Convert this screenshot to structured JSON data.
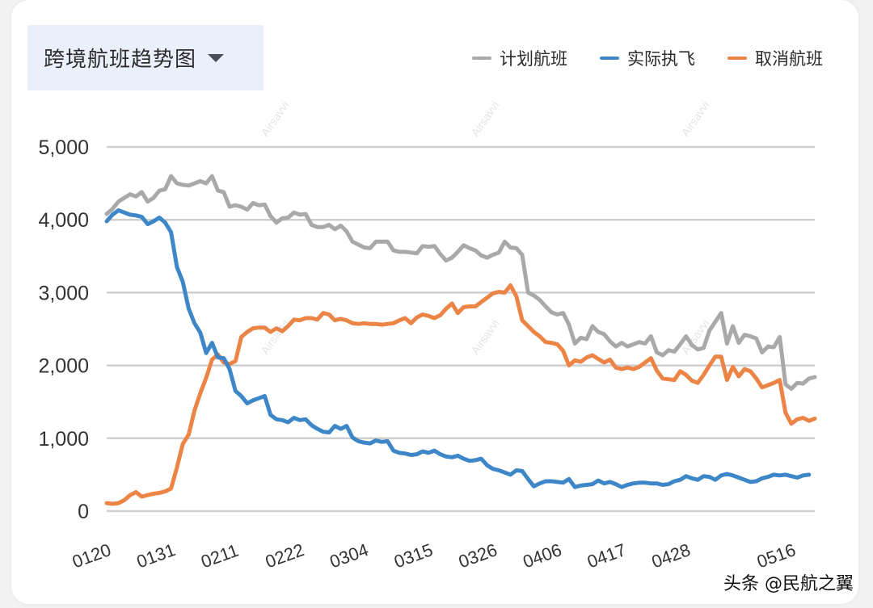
{
  "selector": {
    "label": "跨境航班趋势图",
    "caret_icon": "caret-down-icon"
  },
  "legend": [
    {
      "label": "计划航班",
      "color": "#a9a9a9"
    },
    {
      "label": "实际执飞",
      "color": "#3d87c9"
    },
    {
      "label": "取消航班",
      "color": "#ec8446"
    }
  ],
  "credit": "头条 @民航之翼",
  "chart_data": {
    "type": "line",
    "title": "跨境航班趋势图",
    "xlabel": "",
    "ylabel": "",
    "ylim": [
      0,
      5000
    ],
    "yticks": [
      "0",
      "1,000",
      "2,000",
      "3,000",
      "4,000",
      "5,000"
    ],
    "xtick_labels": [
      "0120",
      "0131",
      "0211",
      "0222",
      "0304",
      "0315",
      "0326",
      "0406",
      "0417",
      "0428",
      "0516"
    ],
    "x_start": "0120",
    "x_end": "0516",
    "grid": true,
    "legend_position": "top-right",
    "series": [
      {
        "name": "计划航班",
        "color": "#a9a9a9",
        "values": [
          4080,
          4150,
          4250,
          4300,
          4350,
          4320,
          4380,
          4250,
          4300,
          4400,
          4420,
          4600,
          4500,
          4480,
          4470,
          4500,
          4530,
          4500,
          4600,
          4400,
          4380,
          4180,
          4200,
          4180,
          4140,
          4230,
          4200,
          4210,
          4050,
          3960,
          4020,
          4030,
          4100,
          4070,
          4080,
          3930,
          3900,
          3900,
          3930,
          3870,
          3920,
          3840,
          3700,
          3660,
          3620,
          3610,
          3700,
          3700,
          3700,
          3580,
          3560,
          3560,
          3550,
          3540,
          3640,
          3630,
          3640,
          3530,
          3440,
          3480,
          3560,
          3650,
          3610,
          3580,
          3510,
          3480,
          3520,
          3550,
          3700,
          3620,
          3610,
          3520,
          3000,
          2960,
          2900,
          2810,
          2730,
          2700,
          2720,
          2560,
          2300,
          2380,
          2360,
          2540,
          2460,
          2430,
          2330,
          2260,
          2310,
          2260,
          2290,
          2320,
          2300,
          2400,
          2180,
          2140,
          2210,
          2190,
          2290,
          2400,
          2280,
          2220,
          2240,
          2480,
          2600,
          2720,
          2300,
          2540,
          2310,
          2420,
          2400,
          2370,
          2180,
          2260,
          2250,
          2390,
          1740,
          1680,
          1760,
          1750,
          1820,
          1840
        ]
      },
      {
        "name": "实际执飞",
        "color": "#3d87c9",
        "values": [
          3980,
          4070,
          4130,
          4100,
          4070,
          4060,
          4040,
          3940,
          3980,
          4030,
          3960,
          3830,
          3350,
          3150,
          2780,
          2580,
          2450,
          2170,
          2310,
          2110,
          2100,
          1950,
          1650,
          1580,
          1480,
          1520,
          1550,
          1580,
          1320,
          1260,
          1250,
          1220,
          1280,
          1250,
          1260,
          1180,
          1130,
          1090,
          1080,
          1170,
          1130,
          1170,
          1010,
          960,
          940,
          930,
          970,
          950,
          960,
          830,
          800,
          790,
          770,
          780,
          820,
          800,
          830,
          780,
          750,
          740,
          760,
          720,
          690,
          700,
          720,
          630,
          580,
          560,
          530,
          500,
          560,
          550,
          440,
          340,
          380,
          410,
          410,
          400,
          390,
          440,
          330,
          350,
          360,
          370,
          420,
          380,
          400,
          370,
          330,
          360,
          380,
          390,
          390,
          380,
          380,
          360,
          370,
          410,
          430,
          480,
          450,
          430,
          480,
          470,
          430,
          490,
          510,
          490,
          460,
          430,
          400,
          410,
          450,
          470,
          500,
          490,
          500,
          480,
          460,
          490,
          500
        ]
      },
      {
        "name": "取消航班",
        "color": "#ec8446",
        "values": [
          110,
          100,
          110,
          150,
          220,
          260,
          200,
          220,
          240,
          250,
          270,
          310,
          600,
          920,
          1050,
          1380,
          1620,
          1830,
          2080,
          2150,
          2040,
          2020,
          2060,
          2390,
          2460,
          2510,
          2520,
          2520,
          2460,
          2510,
          2470,
          2540,
          2630,
          2620,
          2650,
          2650,
          2630,
          2720,
          2700,
          2620,
          2640,
          2620,
          2580,
          2570,
          2580,
          2570,
          2570,
          2560,
          2570,
          2580,
          2620,
          2650,
          2580,
          2660,
          2700,
          2680,
          2650,
          2690,
          2780,
          2850,
          2720,
          2800,
          2810,
          2810,
          2870,
          2930,
          2990,
          3010,
          3000,
          3100,
          2950,
          2620,
          2540,
          2460,
          2400,
          2320,
          2310,
          2290,
          2200,
          2000,
          2070,
          2050,
          2110,
          2140,
          2090,
          2040,
          2080,
          1970,
          1950,
          1970,
          1950,
          1980,
          2040,
          2100,
          1930,
          1820,
          1810,
          1800,
          1920,
          1870,
          1790,
          1760,
          1870,
          2000,
          2120,
          2120,
          1800,
          1980,
          1850,
          1950,
          1920,
          1820,
          1700,
          1730,
          1760,
          1800,
          1350,
          1200,
          1260,
          1280,
          1240,
          1270
        ]
      }
    ]
  }
}
